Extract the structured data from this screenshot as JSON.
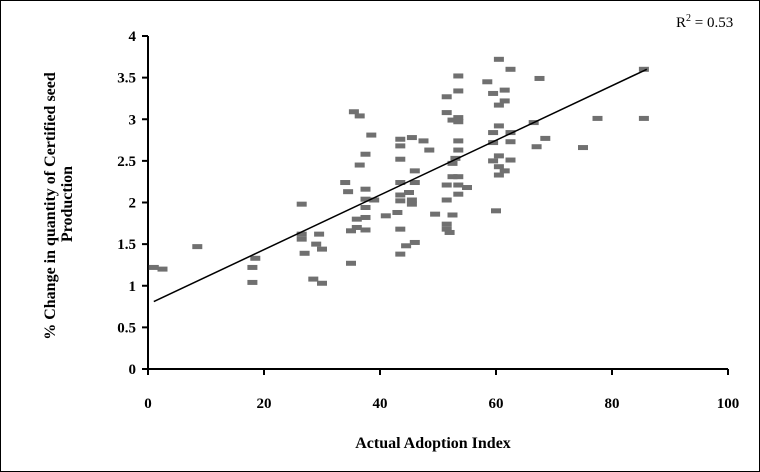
{
  "chart_data": {
    "type": "scatter",
    "xlabel": "Actual Adoption Index",
    "ylabel_lines": [
      "% Change in quantity of Certified seed",
      "Production"
    ],
    "xlim": [
      0,
      100
    ],
    "ylim": [
      0,
      4
    ],
    "xticks": [
      "0",
      "20",
      "40",
      "60",
      "80",
      "100"
    ],
    "yticks": [
      "0",
      "0.5",
      "1",
      "1.5",
      "2",
      "2.5",
      "3",
      "3.5",
      "4"
    ],
    "annotation": {
      "prefix": "R",
      "sup": "2",
      "suffix": " = 0.53"
    },
    "trendline": {
      "x": [
        1,
        86
      ],
      "y": [
        0.81,
        3.6
      ]
    },
    "grid": false,
    "marker_color": "#707070",
    "points": [
      [
        1,
        1.22
      ],
      [
        2.5,
        1.2
      ],
      [
        8.5,
        1.47
      ],
      [
        18,
        1.04
      ],
      [
        18,
        1.22
      ],
      [
        18.5,
        1.33
      ],
      [
        26.5,
        1.98
      ],
      [
        26.5,
        1.62
      ],
      [
        26.5,
        1.56
      ],
      [
        27,
        1.39
      ],
      [
        28.5,
        1.08
      ],
      [
        29,
        1.5
      ],
      [
        29.5,
        1.62
      ],
      [
        30,
        1.44
      ],
      [
        30,
        1.03
      ],
      [
        34,
        2.24
      ],
      [
        34.5,
        2.13
      ],
      [
        35,
        1.66
      ],
      [
        35,
        1.27
      ],
      [
        35.5,
        3.09
      ],
      [
        36,
        1.7
      ],
      [
        36,
        1.8
      ],
      [
        36.5,
        2.45
      ],
      [
        36.5,
        3.04
      ],
      [
        37.5,
        2.58
      ],
      [
        37.5,
        2.16
      ],
      [
        37.5,
        2.04
      ],
      [
        37.5,
        1.94
      ],
      [
        37.5,
        1.82
      ],
      [
        37.5,
        1.67
      ],
      [
        38.5,
        2.81
      ],
      [
        39,
        2.03
      ],
      [
        41,
        1.84
      ],
      [
        43,
        1.88
      ],
      [
        43.5,
        2.76
      ],
      [
        43.5,
        2.68
      ],
      [
        43.5,
        2.52
      ],
      [
        43.5,
        2.24
      ],
      [
        43.5,
        2.09
      ],
      [
        43.5,
        2.02
      ],
      [
        43.5,
        1.68
      ],
      [
        43.5,
        1.38
      ],
      [
        44.5,
        1.48
      ],
      [
        45,
        2.12
      ],
      [
        45.5,
        2.78
      ],
      [
        45.5,
        2.03
      ],
      [
        45.5,
        1.98
      ],
      [
        46,
        2.38
      ],
      [
        46,
        2.24
      ],
      [
        46,
        1.52
      ],
      [
        47.5,
        2.74
      ],
      [
        48.5,
        2.63
      ],
      [
        49.5,
        1.86
      ],
      [
        51.5,
        3.27
      ],
      [
        51.5,
        3.08
      ],
      [
        51.5,
        2.21
      ],
      [
        51.5,
        2.03
      ],
      [
        51.5,
        1.74
      ],
      [
        51.5,
        1.68
      ],
      [
        52,
        1.64
      ],
      [
        52.5,
        2.99
      ],
      [
        52.5,
        2.47
      ],
      [
        52.5,
        2.31
      ],
      [
        52.5,
        1.85
      ],
      [
        53,
        2.53
      ],
      [
        53.5,
        3.52
      ],
      [
        53.5,
        3.34
      ],
      [
        53.5,
        3.02
      ],
      [
        53.5,
        2.97
      ],
      [
        53.5,
        2.74
      ],
      [
        53.5,
        2.63
      ],
      [
        53.5,
        2.31
      ],
      [
        53.5,
        2.21
      ],
      [
        53.5,
        2.1
      ],
      [
        55,
        2.18
      ],
      [
        58.5,
        3.45
      ],
      [
        59.5,
        3.31
      ],
      [
        59.5,
        2.84
      ],
      [
        59.5,
        2.72
      ],
      [
        59.5,
        2.5
      ],
      [
        60,
        1.9
      ],
      [
        60.5,
        3.72
      ],
      [
        60.5,
        3.17
      ],
      [
        60.5,
        2.92
      ],
      [
        60.5,
        2.56
      ],
      [
        60.5,
        2.43
      ],
      [
        60.5,
        2.33
      ],
      [
        61.5,
        3.35
      ],
      [
        61.5,
        3.22
      ],
      [
        61.5,
        2.38
      ],
      [
        62.5,
        3.6
      ],
      [
        62.5,
        2.84
      ],
      [
        62.5,
        2.73
      ],
      [
        62.5,
        2.51
      ],
      [
        66.5,
        2.96
      ],
      [
        67,
        2.67
      ],
      [
        67.5,
        3.49
      ],
      [
        68.5,
        2.77
      ],
      [
        75,
        2.66
      ],
      [
        77.5,
        3.01
      ],
      [
        85.5,
        3.6
      ],
      [
        85.5,
        3.01
      ]
    ]
  }
}
